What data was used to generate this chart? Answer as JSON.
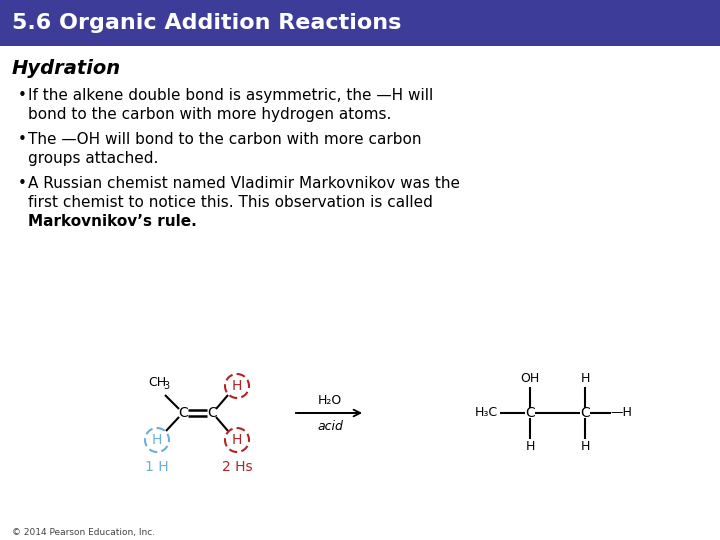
{
  "title": "5.6 Organic Addition Reactions",
  "title_bg": "#3d3d99",
  "title_color": "#ffffff",
  "subtitle": "Hydration",
  "bullet1a": "If the alkene double bond is asymmetric, the —H will",
  "bullet1b": "bond to the carbon with more hydrogen atoms.",
  "bullet2a": "The —OH will bond to the carbon with more carbon",
  "bullet2b": "groups attached.",
  "bullet3a": "A Russian chemist named Vladimir Markovnikov was the",
  "bullet3b": "first chemist to notice this. This observation is called",
  "bullet3c": "Markovnikov’s rule",
  "footer": "© 2014 Pearson Education, Inc.",
  "bg_color": "#ffffff",
  "text_color": "#000000",
  "blue_circle_color": "#6baed6",
  "red_circle_color": "#b22222",
  "label_blue_color": "#6baed6",
  "label_red_color": "#b22222",
  "label_blue": "1 H",
  "label_red": "2 Hs",
  "title_bar_height": 46,
  "title_fontsize": 16,
  "subtitle_fontsize": 14,
  "bullet_fontsize": 11,
  "diagram_fontsize": 9,
  "footer_fontsize": 6.5
}
